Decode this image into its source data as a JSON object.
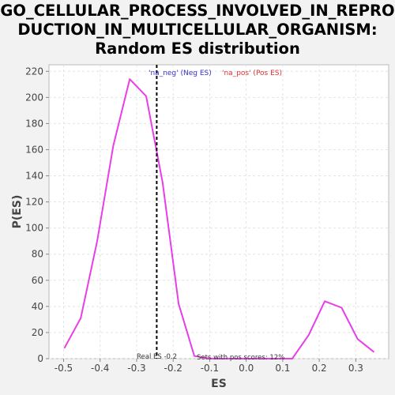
{
  "chart_data": {
    "type": "line",
    "title_lines": [
      "GO_CELLULAR_PROCESS_INVOLVED_IN_REPRO",
      "DUCTION_IN_MULTICELLULAR_ORGANISM:",
      "Random ES distribution"
    ],
    "xlabel": "ES",
    "ylabel": "P(ES)",
    "xlim": [
      -0.54,
      0.39
    ],
    "ylim": [
      0,
      225
    ],
    "xticks": [
      -0.5,
      -0.4,
      -0.3,
      -0.2,
      -0.1,
      0.0,
      0.1,
      0.2,
      0.3
    ],
    "xtick_labels": [
      "-0.5",
      "-0.4",
      "-0.3",
      "-0.2",
      "-0.1",
      "0.0",
      "0.1",
      "0.2",
      "0.3"
    ],
    "yticks": [
      0,
      20,
      40,
      60,
      80,
      100,
      120,
      140,
      160,
      180,
      200,
      220
    ],
    "grid": true,
    "series": [
      {
        "color": "#e83ee8",
        "x": [
          -0.498,
          -0.453,
          -0.408,
          -0.364,
          -0.319,
          -0.274,
          -0.229,
          -0.185,
          -0.142,
          -0.098,
          -0.053,
          -0.008,
          0.036,
          0.081,
          0.126,
          0.171,
          0.215,
          0.261,
          0.305,
          0.35
        ],
        "y": [
          8,
          31,
          90,
          163,
          214,
          201,
          135,
          42,
          2,
          0,
          0,
          0,
          0,
          0,
          0,
          18,
          44,
          39,
          15,
          5
        ]
      }
    ],
    "real_es": -0.245,
    "legend": [
      {
        "label": "'na_neg' (Neg ES)",
        "color": "#3333cc"
      },
      {
        "label": "'na_pos' (Pos ES)",
        "color": "#e03030"
      }
    ],
    "annotations": {
      "real_es": "Real ES -0.2",
      "pos_scores": "Sets with pos scores: 12%"
    }
  }
}
